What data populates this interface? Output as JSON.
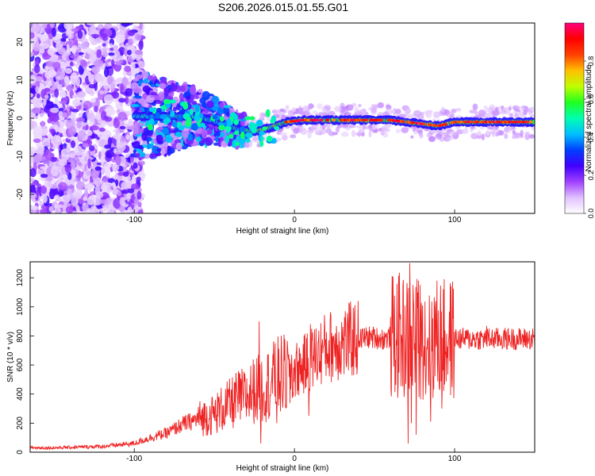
{
  "title": "S206.2026.015.01.55.G01",
  "chart_data": [
    {
      "type": "heatmap",
      "name": "spectrogram",
      "xlabel": "Height of straight line (km)",
      "ylabel": "Frequency (Hz)",
      "xlim": [
        -165,
        150
      ],
      "ylim": [
        -25,
        25
      ],
      "xticks": [
        -100,
        0,
        100
      ],
      "yticks": [
        -20,
        -10,
        0,
        10,
        20
      ],
      "colorbar": {
        "label": "Normalized spectral amplitude",
        "range": [
          0.0,
          1.0
        ],
        "ticks": [
          0.0,
          0.2,
          0.4,
          0.6,
          0.8
        ],
        "tick_labels": [
          "0.0",
          "0.2",
          "0.4",
          "0.6",
          "0.8"
        ],
        "colors": [
          "#ffffff",
          "#e0c0ff",
          "#a040ff",
          "#4000ff",
          "#0040ff",
          "#00c0ff",
          "#00ffb0",
          "#20ff20",
          "#c0ff00",
          "#ffc000",
          "#ff4000",
          "#ff0000",
          "#ff0080"
        ]
      },
      "ridge": [
        {
          "x": -100,
          "y": 0.5
        },
        {
          "x": -60,
          "y": 0.5
        },
        {
          "x": -45,
          "y": -1.5
        },
        {
          "x": -35,
          "y": -3.0
        },
        {
          "x": -25,
          "y": -3.5
        },
        {
          "x": -15,
          "y": -2.5
        },
        {
          "x": -5,
          "y": -1.0
        },
        {
          "x": 5,
          "y": -0.5
        },
        {
          "x": 20,
          "y": -0.5
        },
        {
          "x": 60,
          "y": -0.5
        },
        {
          "x": 70,
          "y": -1.0
        },
        {
          "x": 80,
          "y": -1.5
        },
        {
          "x": 90,
          "y": -2.0
        },
        {
          "x": 100,
          "y": -1.0
        },
        {
          "x": 150,
          "y": -1.0
        }
      ]
    },
    {
      "type": "line",
      "name": "snr",
      "xlabel": "Height of straight line (km)",
      "ylabel": "SNR (10 * v/v)",
      "xlim": [
        -165,
        150
      ],
      "ylim": [
        0,
        1310
      ],
      "xticks": [
        -100,
        0,
        100
      ],
      "yticks": [
        0,
        200,
        400,
        600,
        800,
        1000,
        1200
      ],
      "color": "#ee2222",
      "series": [
        {
          "name": "SNR",
          "x": [
            -165,
            -150,
            -135,
            -120,
            -110,
            -100,
            -90,
            -80,
            -70,
            -60,
            -50,
            -45,
            -40,
            -35,
            -30,
            -25,
            -20,
            -15,
            -10,
            -5,
            0,
            5,
            10,
            15,
            20,
            25,
            30,
            35,
            40,
            45,
            50,
            55,
            60,
            65,
            70,
            72,
            74,
            75,
            76,
            78,
            80,
            85,
            90,
            95,
            100,
            110,
            120,
            130,
            140,
            150
          ],
          "values": [
            30,
            30,
            35,
            40,
            50,
            60,
            100,
            130,
            190,
            230,
            260,
            300,
            330,
            370,
            380,
            430,
            440,
            480,
            520,
            530,
            560,
            590,
            640,
            680,
            720,
            740,
            750,
            770,
            780,
            790,
            790,
            780,
            790,
            800,
            780,
            770,
            760,
            760,
            780,
            790,
            780,
            780,
            780,
            770,
            780,
            780,
            780,
            780,
            780,
            780
          ]
        }
      ],
      "spikes": [
        {
          "x": -22,
          "value": 900
        },
        {
          "x": -21,
          "value": 60
        },
        {
          "x": -12,
          "value": 750
        },
        {
          "x": -11,
          "value": 200
        },
        {
          "x": -3,
          "value": 640
        },
        {
          "x": 10,
          "value": 880
        },
        {
          "x": 9,
          "value": 250
        },
        {
          "x": 60,
          "value": 930
        },
        {
          "x": 72,
          "value": 1300
        },
        {
          "x": 71,
          "value": 60
        },
        {
          "x": 73,
          "value": 200
        },
        {
          "x": 74,
          "value": 1150
        },
        {
          "x": 76,
          "value": 120
        },
        {
          "x": 77,
          "value": 1100
        },
        {
          "x": 80,
          "value": 1010
        },
        {
          "x": 82,
          "value": 400
        },
        {
          "x": 85,
          "value": 210
        },
        {
          "x": 88,
          "value": 1000
        },
        {
          "x": 92,
          "value": 300
        },
        {
          "x": 96,
          "value": 720
        },
        {
          "x": 120,
          "value": 870
        }
      ]
    }
  ]
}
